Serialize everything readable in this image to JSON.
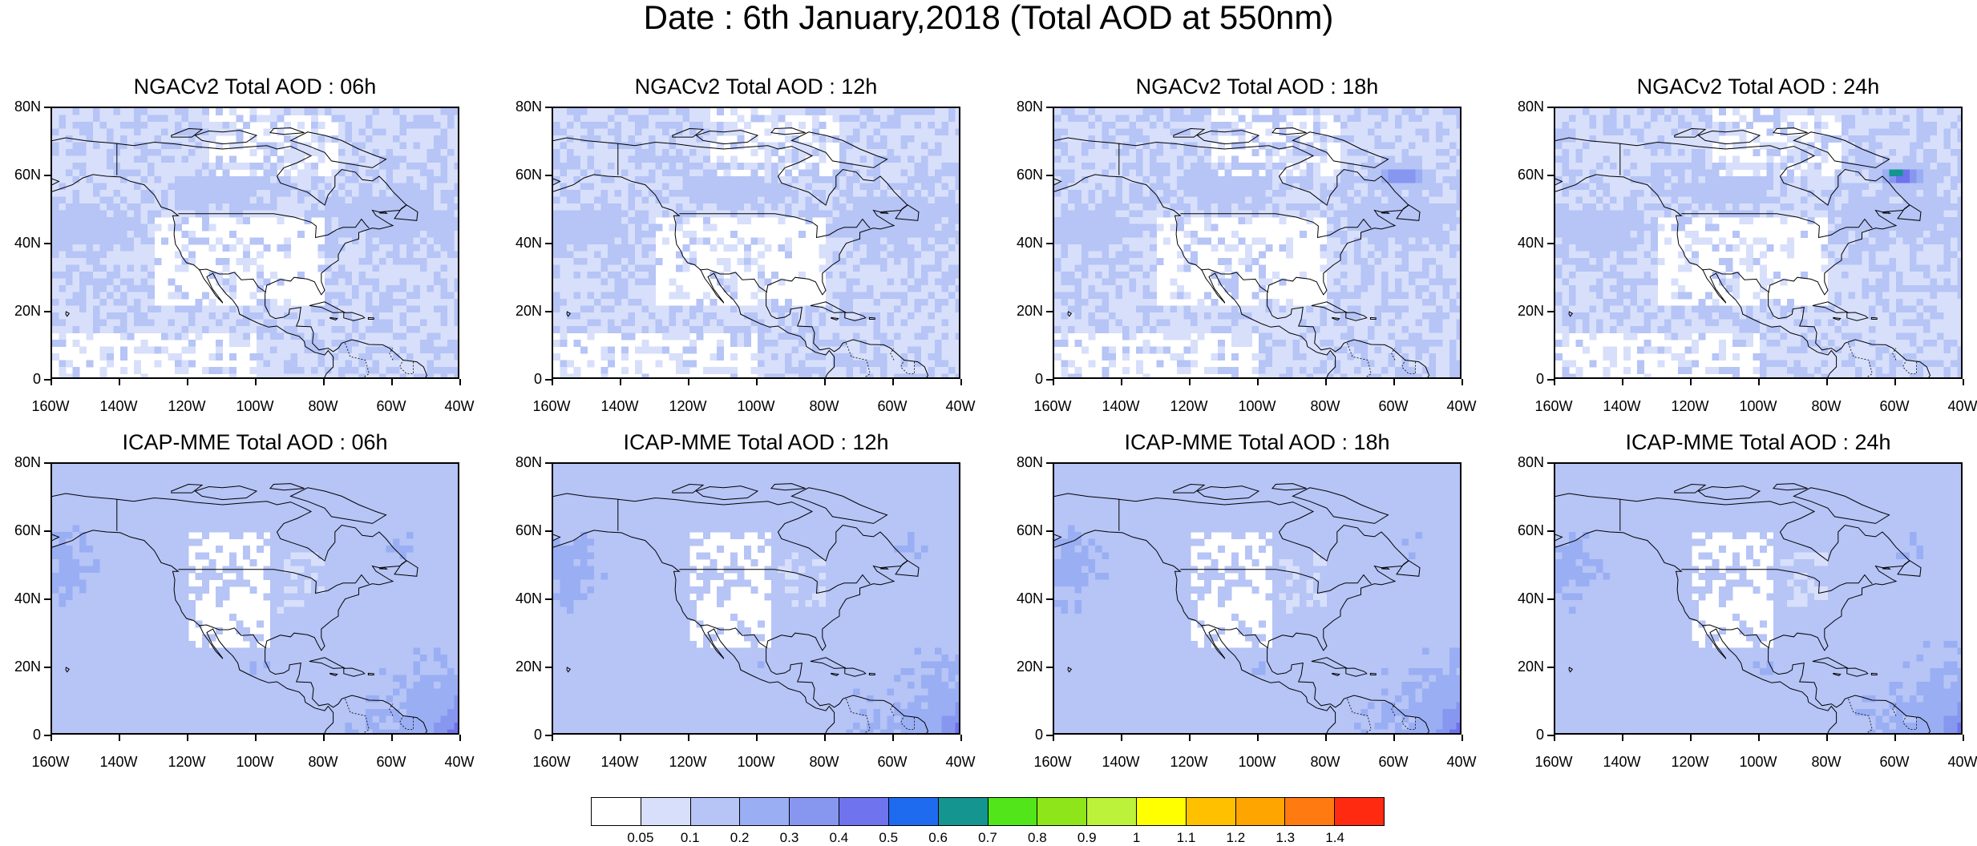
{
  "title": "Date : 6th January,2018 (Total AOD at 550nm)",
  "y_ticks": [
    "80N",
    "60N",
    "40N",
    "20N",
    "0"
  ],
  "x_ticks": [
    "160W",
    "140W",
    "120W",
    "100W",
    "80W",
    "60W",
    "40W"
  ],
  "panels": [
    {
      "title": "NGACv2 Total AOD : 06h",
      "model": "NGACv2",
      "hour": "06h"
    },
    {
      "title": "NGACv2 Total AOD : 12h",
      "model": "NGACv2",
      "hour": "12h"
    },
    {
      "title": "NGACv2 Total AOD : 18h",
      "model": "NGACv2",
      "hour": "18h"
    },
    {
      "title": "NGACv2 Total AOD : 24h",
      "model": "NGACv2",
      "hour": "24h"
    },
    {
      "title": "ICAP-MME Total AOD : 06h",
      "model": "ICAP-MME",
      "hour": "06h"
    },
    {
      "title": "ICAP-MME Total AOD : 12h",
      "model": "ICAP-MME",
      "hour": "12h"
    },
    {
      "title": "ICAP-MME Total AOD : 18h",
      "model": "ICAP-MME",
      "hour": "18h"
    },
    {
      "title": "ICAP-MME Total AOD : 24h",
      "model": "ICAP-MME",
      "hour": "24h"
    }
  ],
  "colorbar": {
    "labels": [
      "0.05",
      "0.1",
      "0.2",
      "0.3",
      "0.4",
      "0.5",
      "0.6",
      "0.7",
      "0.8",
      "0.9",
      "1",
      "1.1",
      "1.2",
      "1.3",
      "1.4"
    ],
    "colors": [
      "#ffffff",
      "#d7dffb",
      "#b6c4f6",
      "#9aaef3",
      "#8797f0",
      "#6f73ee",
      "#1f6bf0",
      "#14958f",
      "#52e61a",
      "#8ee61a",
      "#bdf23b",
      "#ffff00",
      "#ffc000",
      "#ffa500",
      "#ff7a10",
      "#ff2a10"
    ]
  }
}
